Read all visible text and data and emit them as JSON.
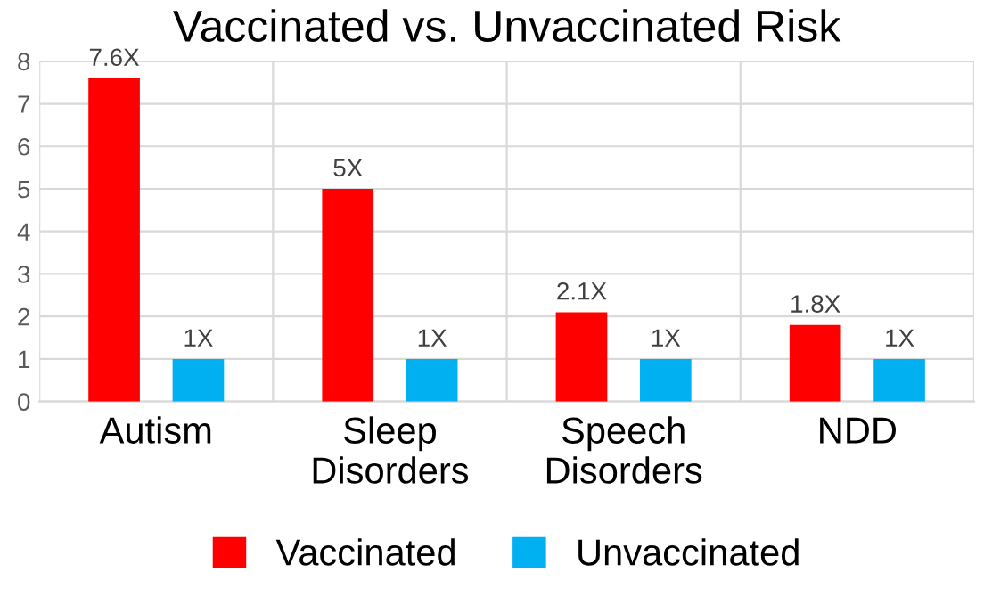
{
  "chart_data": {
    "type": "bar",
    "title": "Vaccinated vs. Unvaccinated Risk",
    "categories": [
      "Autism",
      "Sleep\nDisorders",
      "Speech\nDisorders",
      "NDD"
    ],
    "series": [
      {
        "name": "Vaccinated",
        "color": "#ff0000",
        "values": [
          7.6,
          5,
          2.1,
          1.8
        ],
        "value_labels": [
          "7.6X",
          "5X",
          "2.1X",
          "1.8X"
        ]
      },
      {
        "name": "Unvaccinated",
        "color": "#00b0f0",
        "values": [
          1,
          1,
          1,
          1
        ],
        "value_labels": [
          "1X",
          "1X",
          "1X",
          "1X"
        ]
      }
    ],
    "ylim": [
      0,
      8
    ],
    "yticks": [
      0,
      1,
      2,
      3,
      4,
      5,
      6,
      7,
      8
    ],
    "grid": true,
    "legend": "bottom"
  }
}
